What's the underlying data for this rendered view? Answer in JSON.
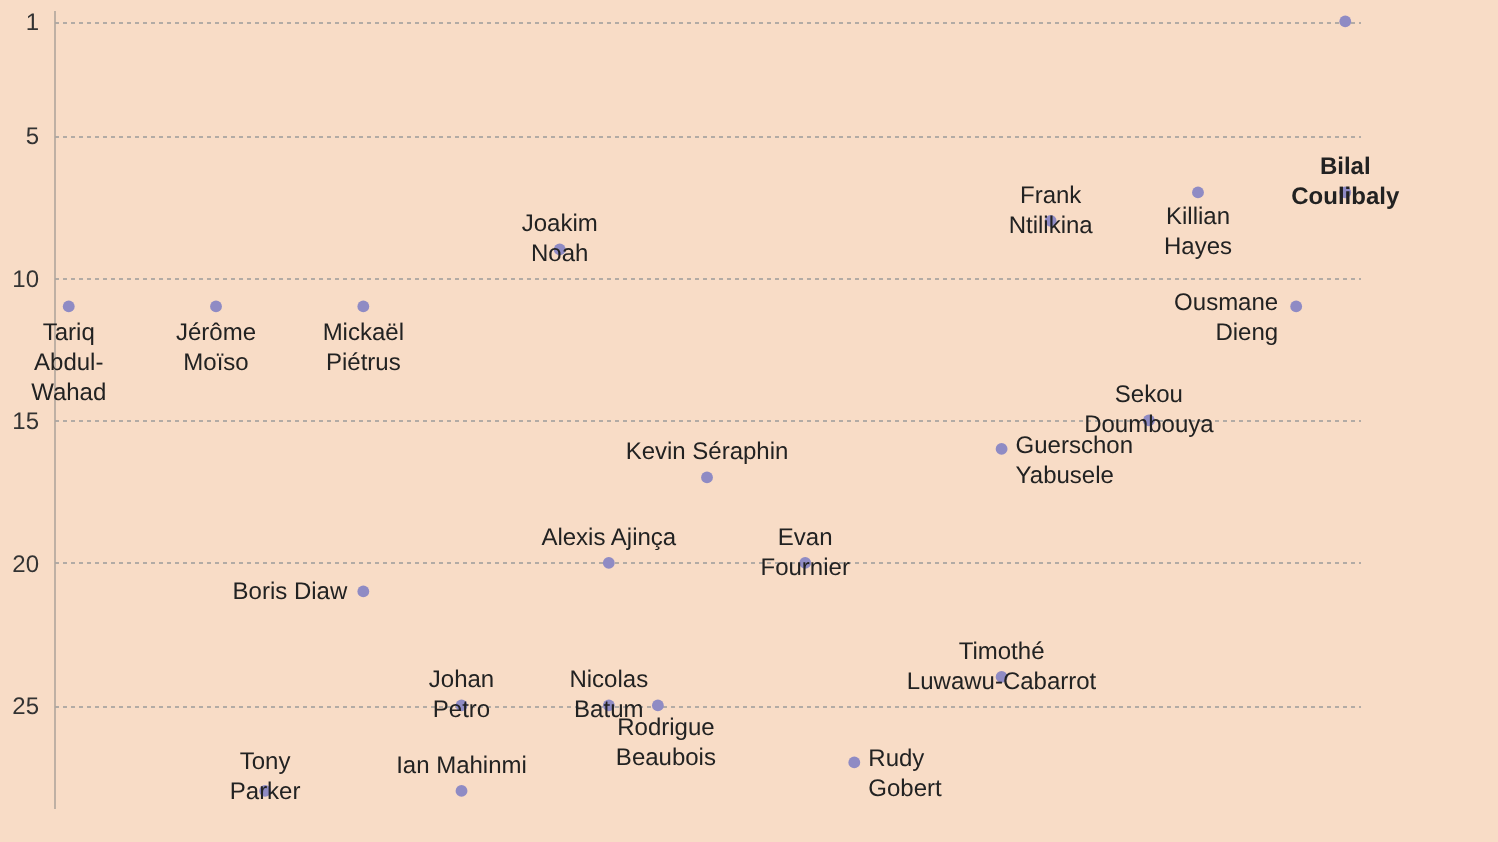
{
  "chart_data": {
    "type": "scatter",
    "categories": [
      null,
      null,
      null,
      null,
      null,
      null,
      null,
      null,
      null,
      null,
      null,
      null,
      null,
      null,
      null,
      null,
      null,
      null,
      null,
      null,
      null,
      null,
      null,
      null,
      null,
      null,
      null
    ],
    "series": [
      {
        "color": "#8f8bc4",
        "values": [
          11,
          null,
          null,
          11,
          28,
          null,
          11,
          null,
          25,
          null,
          9,
          20,
          25,
          17,
          null,
          20,
          27,
          null,
          null,
          24,
          8,
          null,
          15,
          7,
          null,
          11,
          7
        ],
        "value_labels": [
          "Tariq\nAbdul-\nWahad",
          null,
          null,
          "Jérôme\nMoïso",
          "Tony\nParker",
          null,
          "Mickaël\nPiétrus",
          null,
          "Johan\nPetro",
          null,
          "Joakim\nNoah",
          "Alexis Ajinça",
          "Rodrigue\nBeaubois",
          "Kevin Séraphin",
          null,
          "Evan\nFournier",
          "Rudy\nGobert",
          null,
          null,
          "Timothé\nLuwawu-Cabarrot",
          "Frank\nNtilikina",
          null,
          "Sekou\nDoumbouya",
          "Killian\nHayes",
          null,
          "Ousmane\nDieng",
          "Bilal\nCoulibaly"
        ]
      },
      {
        "color": "#8f8bc4",
        "values": [
          null,
          null,
          null,
          null,
          null,
          null,
          21,
          null,
          28,
          null,
          null,
          25,
          null,
          null,
          null,
          null,
          null,
          null,
          null,
          16,
          null,
          null,
          null,
          null,
          null,
          null,
          1
        ],
        "value_labels": [
          null,
          null,
          null,
          null,
          null,
          null,
          "Boris Diaw",
          null,
          "Ian Mahinmi",
          null,
          null,
          "Nicolas\nBatum",
          null,
          null,
          null,
          null,
          null,
          null,
          null,
          "Guerschon\nYabusele",
          null,
          null,
          null,
          null,
          null,
          null,
          null
        ]
      }
    ],
    "ylim": [
      28.6,
      0.6
    ],
    "yticks": [
      1,
      5,
      10,
      15,
      20,
      25
    ],
    "grid": "y",
    "marker": "circle"
  }
}
